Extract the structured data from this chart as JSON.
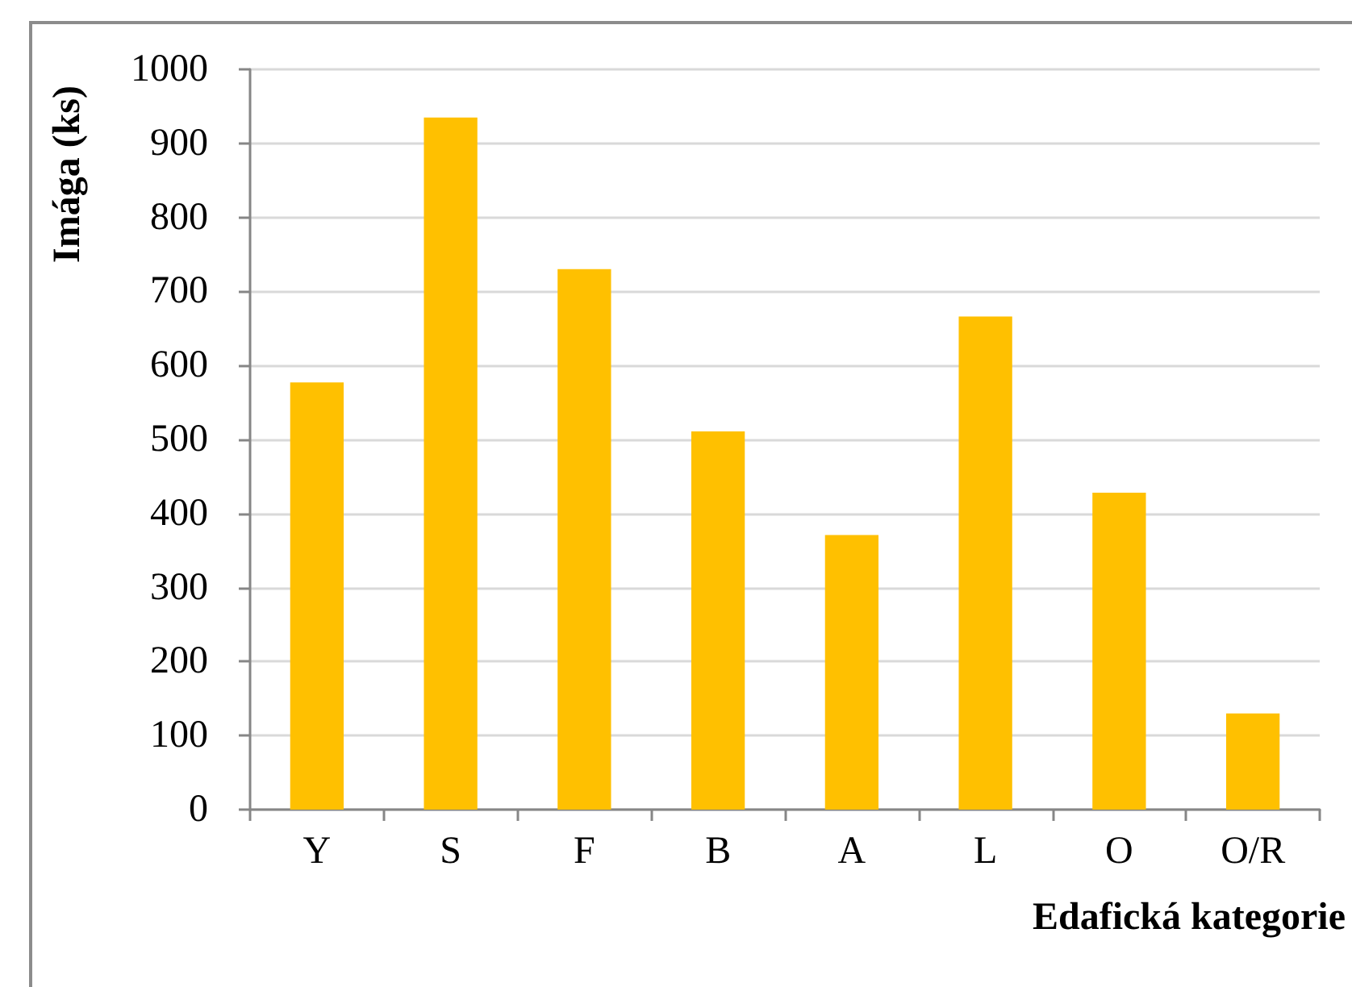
{
  "chart_data": {
    "type": "bar",
    "categories": [
      "Y",
      "S",
      "F",
      "B",
      "A",
      "L",
      "O",
      "O/R"
    ],
    "values": [
      577,
      935,
      730,
      511,
      371,
      666,
      428,
      130
    ],
    "color": "#ffc000",
    "xlabel": "Edafická kategorie",
    "ylabel": "Imága (ks)",
    "ylim": [
      0,
      1000
    ],
    "yticks": [
      0,
      100,
      200,
      300,
      400,
      500,
      600,
      700,
      800,
      900,
      1000
    ],
    "grid": "y"
  }
}
